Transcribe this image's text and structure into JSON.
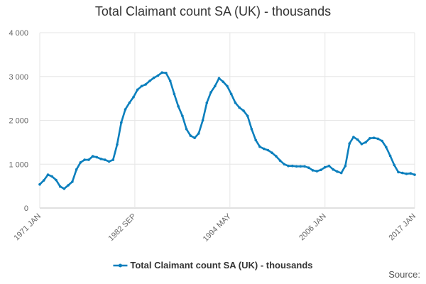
{
  "chart_data": {
    "type": "line",
    "title": "Total Claimant count SA (UK) - thousands",
    "ylim": [
      0,
      4000
    ],
    "y_ticks": [
      0,
      1000,
      2000,
      3000,
      4000
    ],
    "y_tick_labels": [
      "0",
      "1 000",
      "2 000",
      "3 000",
      "4 000"
    ],
    "x_range": [
      "1971-01",
      "2017-01"
    ],
    "x_ticks": [
      "1971-01",
      "1982-09",
      "1994-05",
      "2006-01",
      "2017-01"
    ],
    "x_tick_labels": [
      "1971 JAN",
      "1982 SEP",
      "1994 MAY",
      "2006 JAN",
      "2017 JAN"
    ],
    "grid": true,
    "legend_placement": "bottom",
    "series": [
      {
        "name": "Total Claimant count SA (UK) - thousands",
        "color": "#0b7fbd",
        "points": [
          [
            "1971-01",
            540
          ],
          [
            "1971-07",
            630
          ],
          [
            "1972-01",
            760
          ],
          [
            "1972-07",
            720
          ],
          [
            "1973-01",
            640
          ],
          [
            "1973-07",
            490
          ],
          [
            "1974-01",
            440
          ],
          [
            "1974-07",
            520
          ],
          [
            "1975-01",
            600
          ],
          [
            "1975-07",
            880
          ],
          [
            "1976-01",
            1040
          ],
          [
            "1976-07",
            1100
          ],
          [
            "1977-01",
            1100
          ],
          [
            "1977-07",
            1180
          ],
          [
            "1978-01",
            1160
          ],
          [
            "1978-07",
            1120
          ],
          [
            "1979-01",
            1100
          ],
          [
            "1979-07",
            1060
          ],
          [
            "1980-01",
            1100
          ],
          [
            "1980-07",
            1450
          ],
          [
            "1981-01",
            1950
          ],
          [
            "1981-07",
            2250
          ],
          [
            "1982-01",
            2400
          ],
          [
            "1982-07",
            2530
          ],
          [
            "1983-01",
            2700
          ],
          [
            "1983-07",
            2780
          ],
          [
            "1984-01",
            2820
          ],
          [
            "1984-07",
            2900
          ],
          [
            "1985-01",
            2970
          ],
          [
            "1985-07",
            3020
          ],
          [
            "1986-01",
            3090
          ],
          [
            "1986-07",
            3080
          ],
          [
            "1987-01",
            2900
          ],
          [
            "1987-07",
            2600
          ],
          [
            "1988-01",
            2320
          ],
          [
            "1988-07",
            2100
          ],
          [
            "1989-01",
            1800
          ],
          [
            "1989-07",
            1650
          ],
          [
            "1990-01",
            1600
          ],
          [
            "1990-07",
            1700
          ],
          [
            "1991-01",
            2000
          ],
          [
            "1991-07",
            2400
          ],
          [
            "1992-01",
            2640
          ],
          [
            "1992-07",
            2780
          ],
          [
            "1993-01",
            2960
          ],
          [
            "1993-07",
            2880
          ],
          [
            "1994-01",
            2780
          ],
          [
            "1994-07",
            2600
          ],
          [
            "1995-01",
            2400
          ],
          [
            "1995-07",
            2290
          ],
          [
            "1996-01",
            2220
          ],
          [
            "1996-07",
            2100
          ],
          [
            "1997-01",
            1800
          ],
          [
            "1997-07",
            1550
          ],
          [
            "1998-01",
            1400
          ],
          [
            "1998-07",
            1350
          ],
          [
            "1999-01",
            1320
          ],
          [
            "1999-07",
            1260
          ],
          [
            "2000-01",
            1180
          ],
          [
            "2000-07",
            1080
          ],
          [
            "2001-01",
            1000
          ],
          [
            "2001-07",
            960
          ],
          [
            "2002-01",
            960
          ],
          [
            "2002-07",
            950
          ],
          [
            "2003-01",
            950
          ],
          [
            "2003-07",
            950
          ],
          [
            "2004-01",
            920
          ],
          [
            "2004-07",
            860
          ],
          [
            "2005-01",
            840
          ],
          [
            "2005-07",
            870
          ],
          [
            "2006-01",
            930
          ],
          [
            "2006-07",
            960
          ],
          [
            "2007-01",
            880
          ],
          [
            "2007-07",
            830
          ],
          [
            "2008-01",
            800
          ],
          [
            "2008-07",
            960
          ],
          [
            "2009-01",
            1470
          ],
          [
            "2009-07",
            1620
          ],
          [
            "2010-01",
            1560
          ],
          [
            "2010-07",
            1460
          ],
          [
            "2011-01",
            1500
          ],
          [
            "2011-07",
            1590
          ],
          [
            "2012-01",
            1600
          ],
          [
            "2012-07",
            1580
          ],
          [
            "2013-01",
            1530
          ],
          [
            "2013-07",
            1390
          ],
          [
            "2014-01",
            1190
          ],
          [
            "2014-07",
            980
          ],
          [
            "2015-01",
            820
          ],
          [
            "2015-07",
            800
          ],
          [
            "2016-01",
            780
          ],
          [
            "2016-07",
            790
          ],
          [
            "2017-01",
            760
          ]
        ]
      }
    ]
  },
  "footer": {
    "source_label": "Source:"
  }
}
